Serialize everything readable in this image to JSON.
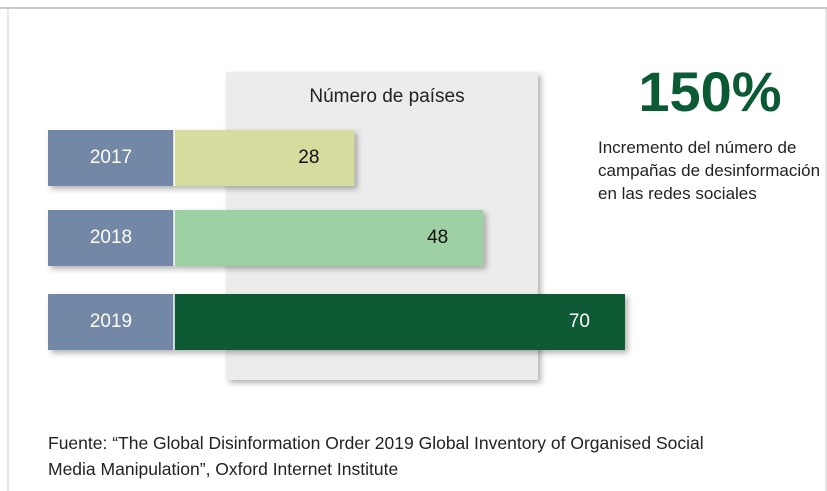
{
  "chart_data": {
    "type": "bar",
    "orientation": "horizontal",
    "title": "Número de países",
    "categories": [
      "2017",
      "2018",
      "2019"
    ],
    "values": [
      28,
      48,
      70
    ],
    "colors": [
      "#d6dc9e",
      "#9dd0a2",
      "#0b5a34"
    ],
    "category_color": "#7387a6",
    "annotation": "150%",
    "annotation_text": "Incremento del número de campañas de desinformación en las redes sociales",
    "source": "Fuente: “The Global Disinformation Order 2019 Global Inventory of Organised Social Media Manipulation”, Oxford Internet Institute"
  }
}
